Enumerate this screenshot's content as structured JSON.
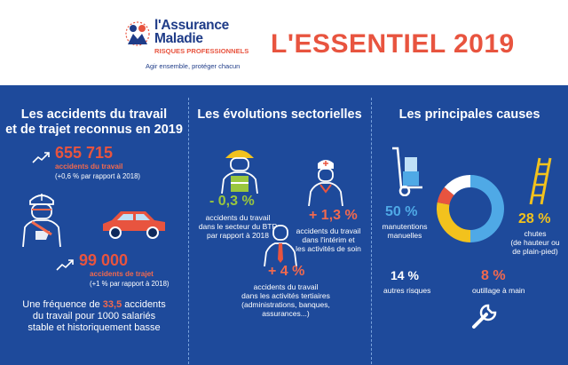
{
  "header": {
    "brand_line1": "l'Assurance",
    "brand_line2": "Maladie",
    "brand_sub": "RISQUES PROFESSIONNELS",
    "tagline": "Agir ensemble, protéger chacun",
    "title": "L'ESSENTIEL 2019"
  },
  "col1": {
    "heading_line1": "Les accidents du travail",
    "heading_line2": "et de trajet reconnus en 2019",
    "work_number": "655 715",
    "work_label": "accidents du travail",
    "work_change": "(+0,6 % par rapport à 2018)",
    "commute_number": "99 000",
    "commute_label": "accidents de trajet",
    "commute_change": "(+1 % par rapport à 2018)",
    "freq_line1_a": "Une fréquence de ",
    "freq_value": "33,5",
    "freq_line1_b": " accidents",
    "freq_line2": "du travail pour 1000 salariés",
    "freq_line3": "stable et historiquement basse"
  },
  "col2": {
    "heading": "Les évolutions sectorielles",
    "btp_value": "- 0,3 %",
    "btp_line1": "accidents du travail",
    "btp_line2": "dans le secteur du BTP",
    "btp_line3": "par rapport à 2018",
    "interim_value": "+ 1,3 %",
    "interim_line1": "accidents du travail",
    "interim_line2": "dans l'intérim et",
    "interim_line3": "les activités de soin",
    "tertiary_value": "+ 4 %",
    "tertiary_line1": "accidents du travail",
    "tertiary_line2": "dans les activités tertiaires",
    "tertiary_line3": "(administrations, banques,",
    "tertiary_line4": "assurances...)"
  },
  "col3": {
    "heading": "Les principales causes",
    "handling_value": "50 %",
    "handling_line1": "manutentions",
    "handling_line2": "manuelles",
    "falls_value": "28 %",
    "falls_line1": "chutes",
    "falls_line2": "(de hauteur ou",
    "falls_line3": "de plain-pied)",
    "other_value": "14 %",
    "other_label": "autres risques",
    "tools_value": "8 %",
    "tools_label": "outillage à main",
    "donut": [
      {
        "label": "manutentions manuelles",
        "value": 50,
        "color": "#4fa9e6"
      },
      {
        "label": "chutes",
        "value": 28,
        "color": "#f2c21d"
      },
      {
        "label": "outillage à main",
        "value": 8,
        "color": "#e8543f"
      },
      {
        "label": "autres risques",
        "value": 14,
        "color": "#ffffff"
      }
    ]
  }
}
